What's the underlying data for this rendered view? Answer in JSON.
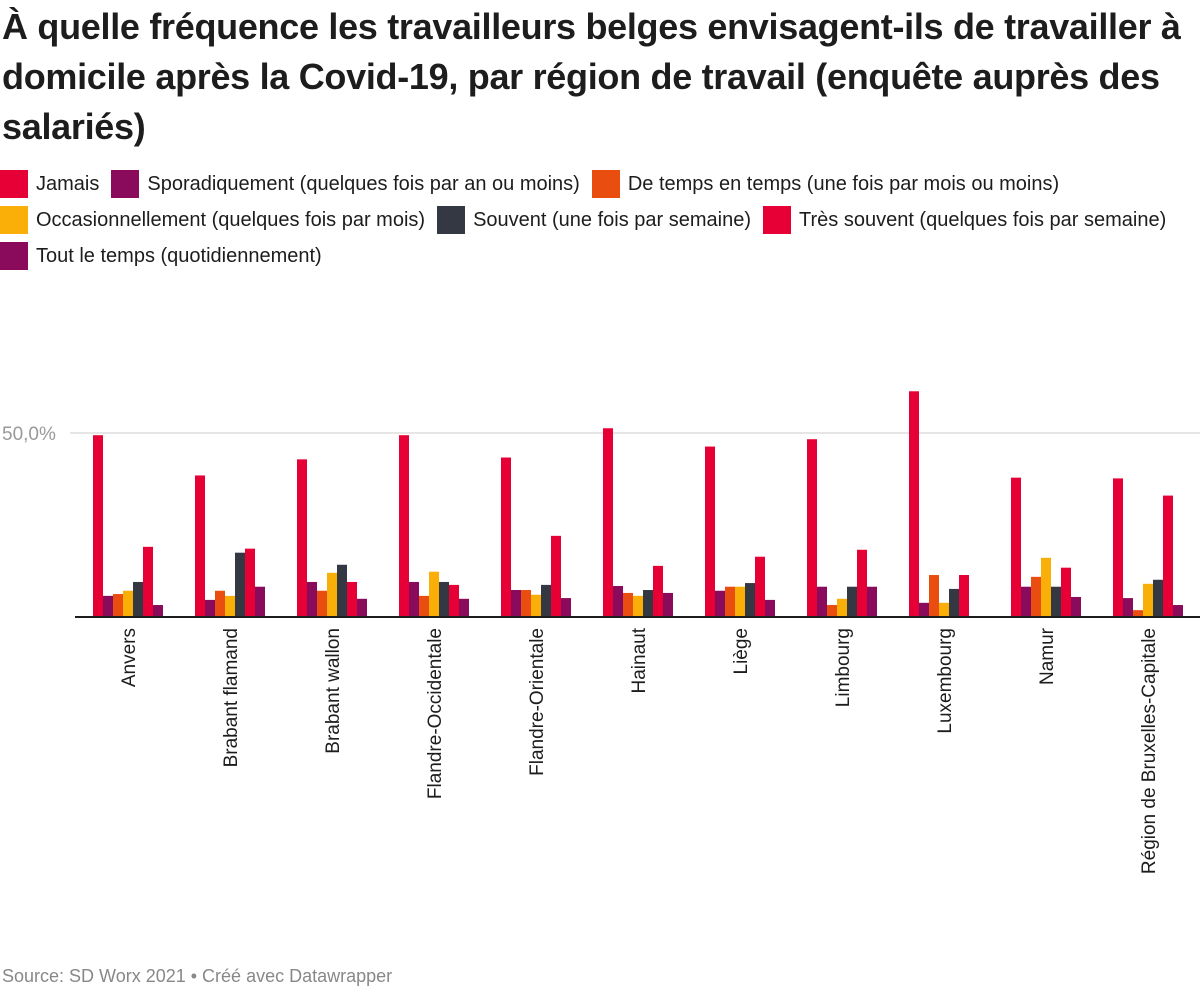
{
  "chart_data": {
    "type": "bar",
    "title": "À quelle fréquence les travailleurs belges envisagent-ils de travailler à domicile après la Covid-19, par région de travail (enquête auprès des salariés)",
    "categories": [
      "Anvers",
      "Brabant flamand",
      "Brabant wallon",
      "Flandre-Occidentale",
      "Flandre-Orientale",
      "Hainaut",
      "Liège",
      "Limbourg",
      "Luxembourg",
      "Namur",
      "Région de Bruxelles-Capitale"
    ],
    "series": [
      {
        "name": "Jamais",
        "color": "#e60036",
        "values": [
          49.4,
          38.4,
          42.8,
          49.4,
          43.3,
          51.3,
          46.3,
          48.3,
          61.4,
          37.8,
          37.6
        ]
      },
      {
        "name": "Sporadiquement (quelques fois par an ou moins)",
        "color": "#8a0b5b",
        "values": [
          5.5,
          4.4,
          9.3,
          9.3,
          7.1,
          8.2,
          6.9,
          8.0,
          3.6,
          8.0,
          4.9
        ]
      },
      {
        "name": "De temps en temps (une fois par mois ou moins)",
        "color": "#e94e10",
        "values": [
          6.0,
          6.9,
          6.9,
          5.5,
          7.1,
          6.3,
          8.0,
          3.0,
          11.2,
          10.7,
          1.6
        ]
      },
      {
        "name": "Occasionnellement (quelques fois par mois)",
        "color": "#f9ae08",
        "values": [
          6.9,
          5.5,
          11.8,
          12.1,
          5.8,
          5.5,
          8.0,
          4.7,
          3.6,
          15.9,
          8.8
        ]
      },
      {
        "name": "Souvent (une fois par semaine)",
        "color": "#333842",
        "values": [
          9.3,
          17.3,
          14.0,
          9.3,
          8.5,
          7.1,
          9.0,
          8.0,
          7.4,
          8.0,
          9.9
        ]
      },
      {
        "name": "Très souvent (quelques fois par semaine)",
        "color": "#e60036",
        "values": [
          18.9,
          18.4,
          9.3,
          8.5,
          21.9,
          13.7,
          16.2,
          18.1,
          11.2,
          13.2,
          32.9
        ]
      },
      {
        "name": "Tout le temps (quotidiennement)",
        "color": "#8a0b5b",
        "values": [
          3.0,
          8.0,
          4.7,
          4.7,
          4.9,
          6.3,
          4.4,
          8.0,
          0,
          5.2,
          3.0
        ]
      }
    ],
    "yticks": [
      {
        "value": 50,
        "label": "50,0%"
      }
    ],
    "ylim": [
      0,
      62
    ],
    "grid": true,
    "legend_position": "top-left"
  },
  "source": "Source: SD Worx 2021 • Créé avec Datawrapper"
}
